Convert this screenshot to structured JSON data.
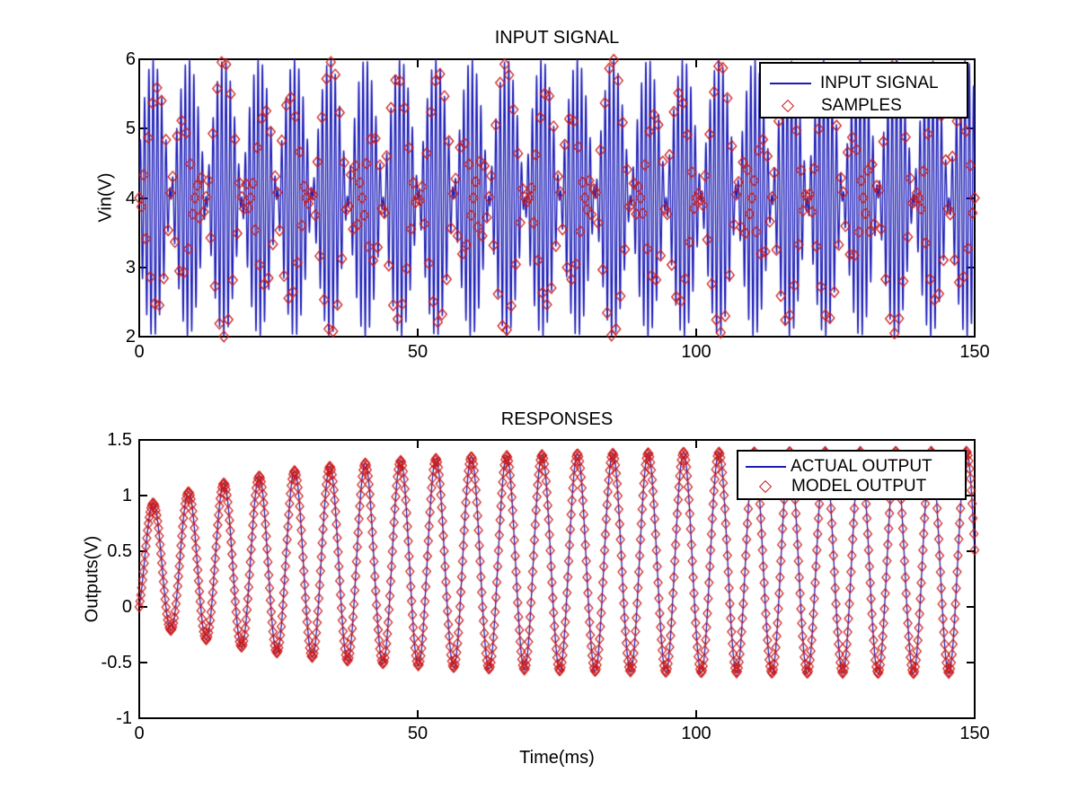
{
  "figure": {
    "background": "#FFFFFF"
  },
  "colors": {
    "line": "#1C1CB8",
    "marker": "#CC1A1A",
    "text": "#000000",
    "axis": "#000000",
    "legend_background": "#FFFFFF"
  },
  "chart_data": [
    {
      "type": "line",
      "title": "INPUT SIGNAL",
      "xlabel": "",
      "ylabel": "Vin(V)",
      "xlim": [
        0,
        150
      ],
      "ylim": [
        2,
        6
      ],
      "xticks": [
        0,
        50,
        100,
        150
      ],
      "xtick_labels": [
        "0",
        "50",
        "100",
        "150"
      ],
      "yticks": [
        6,
        5,
        4,
        3,
        2
      ],
      "ytick_labels": [
        "6",
        "5",
        "4",
        "3",
        "2"
      ],
      "grid": false,
      "legend": {
        "position": "upper right",
        "entries": [
          {
            "label": "INPUT SIGNAL",
            "glyph": "line",
            "color": "#1C1CB8"
          },
          {
            "label": "SAMPLES",
            "glyph": "open-diamond",
            "color": "#CC1A1A"
          }
        ]
      },
      "series": [
        {
          "name": "INPUT SIGNAL",
          "style": "solid-line",
          "color": "#1C1CB8",
          "signal_model": "Vin(t) = offset_v + envelope_peak_v*cos(pi*beat_freq_cycles_per_ms*(t-burst_center_ms))*sin(2*pi*carrier_freq_cycles_per_ms*t), t in ms",
          "offset_v": 4,
          "envelope_peak_v": 2,
          "carrier_freq_cycles_per_ms": 1.3,
          "beat_freq_cycles_per_ms": 0.1575,
          "burst_center_ms": 2.5,
          "burst_period_ms": 6.35,
          "value_range_v": [
            2,
            6
          ]
        },
        {
          "name": "SAMPLES",
          "style": "scatter",
          "marker": "open-diamond",
          "color": "#CC1A1A",
          "sample_interval_ms": 0.4,
          "samples_of_series": "INPUT SIGNAL"
        }
      ]
    },
    {
      "type": "line",
      "title": "RESPONSES",
      "xlabel": "Time(ms)",
      "ylabel": "Outputs(V)",
      "xlim": [
        0,
        150
      ],
      "ylim": [
        -1,
        1.5
      ],
      "xticks": [
        0,
        50,
        100,
        150
      ],
      "xtick_labels": [
        "0",
        "50",
        "100",
        "150"
      ],
      "yticks": [
        1.5,
        1,
        0.5,
        0,
        -0.5,
        -1
      ],
      "ytick_labels": [
        "1.5",
        "1",
        "0.5",
        "0",
        "-0.5",
        "-1"
      ],
      "grid": false,
      "legend": {
        "position": "upper right",
        "entries": [
          {
            "label": "ACTUAL OUTPUT",
            "glyph": "line",
            "color": "#1C1CB8"
          },
          {
            "label": "MODEL OUTPUT",
            "glyph": "open-diamond",
            "color": "#CC1A1A"
          }
        ]
      },
      "series": [
        {
          "name": "ACTUAL OUTPUT",
          "style": "solid-line",
          "color": "#1C1CB8",
          "signal_model": "y(t) = M(t) + A(t)*sin(2*pi*t/period_ms + phase_rad); E=exp(-t/tau_ms); M = mean_settled_v - mean_delta_v*E; A = amp_settled_v - amp_delta_v*E",
          "period_ms": 6.35,
          "tau_ms": 26,
          "phase_rad": -0.878,
          "mean_settled_v": 0.4,
          "mean_delta_v": 0.015,
          "amp_settled_v": 1.0,
          "amp_delta_v": 0.5,
          "start_v": 0,
          "first_peak_v": 0.93,
          "settled_peak_v": 1.4,
          "first_trough_v": -0.21,
          "settled_trough_v": -0.6
        },
        {
          "name": "MODEL OUTPUT",
          "style": "scatter",
          "marker": "open-diamond",
          "color": "#CC1A1A",
          "sample_interval_ms": 0.15,
          "samples_of_series": "ACTUAL OUTPUT"
        }
      ]
    }
  ]
}
